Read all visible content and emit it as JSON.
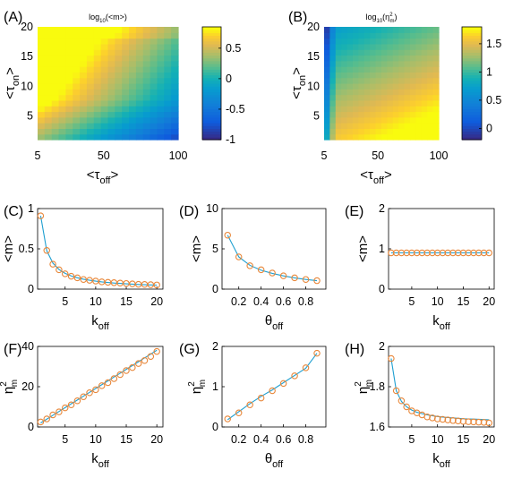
{
  "chart_data": [
    {
      "panel": "(A)",
      "type": "heatmap",
      "title": "log10(<m>)",
      "title_parts": {
        "pre": "log",
        "sub": "10",
        "post": "(<m>)"
      },
      "xlabel": {
        "main": "<τ",
        "sub": "off",
        "post": ">"
      },
      "ylabel": {
        "main": "<τ",
        "sub": "on",
        "post": ">"
      },
      "xlim": [
        5,
        100
      ],
      "ylim": [
        1,
        20
      ],
      "xticks": [
        "5",
        "50",
        "100"
      ],
      "yticks": [
        "5",
        "10",
        "15",
        "20"
      ],
      "colorbar": {
        "ticks": [
          "-1",
          "-0.5",
          "0",
          "0.5"
        ],
        "range": [
          -1,
          0.85
        ],
        "colormap": "parula"
      }
    },
    {
      "panel": "(B)",
      "type": "heatmap",
      "title": "log10(η²m)",
      "title_parts": {
        "pre": "log",
        "sub": "10",
        "post": "(η",
        "sup2": "2",
        "sub2": "m",
        "end": ")"
      },
      "xlabel": {
        "main": "<τ",
        "sub": "off",
        "post": ">"
      },
      "ylabel": {
        "main": "<τ",
        "sub": "on",
        "post": ">"
      },
      "xlim": [
        5,
        100
      ],
      "ylim": [
        1,
        20
      ],
      "xticks": [
        "5",
        "50",
        "100"
      ],
      "yticks": [
        "5",
        "10",
        "15",
        "20"
      ],
      "colorbar": {
        "ticks": [
          "0",
          "0.5",
          "1",
          "1.5"
        ],
        "range": [
          -0.2,
          1.8
        ],
        "colormap": "parula"
      }
    },
    {
      "panel": "(C)",
      "type": "line",
      "xlabel": {
        "main": "k",
        "sub": "off"
      },
      "ylabel": {
        "main": "<m>"
      },
      "xlim": [
        0.5,
        21
      ],
      "ylim": [
        0,
        1
      ],
      "xticks": [
        5,
        10,
        15,
        20
      ],
      "yticks": [
        0,
        0.5,
        1
      ],
      "x": [
        1,
        2,
        3,
        4,
        5,
        6,
        7,
        8,
        9,
        10,
        11,
        12,
        13,
        14,
        15,
        16,
        17,
        18,
        19,
        20
      ],
      "sim": [
        0.91,
        0.48,
        0.31,
        0.24,
        0.19,
        0.16,
        0.14,
        0.12,
        0.11,
        0.1,
        0.09,
        0.085,
        0.08,
        0.075,
        0.07,
        0.065,
        0.06,
        0.058,
        0.055,
        0.052
      ],
      "theory": [
        0.91,
        0.476,
        0.323,
        0.244,
        0.196,
        0.164,
        0.141,
        0.123,
        0.11,
        0.099,
        0.09,
        0.083,
        0.076,
        0.071,
        0.066,
        0.062,
        0.058,
        0.055,
        0.052,
        0.05
      ]
    },
    {
      "panel": "(D)",
      "type": "line",
      "xlabel": {
        "main": "θ",
        "sub": "off"
      },
      "ylabel": {
        "main": "<m>"
      },
      "xlim": [
        0.05,
        0.98
      ],
      "ylim": [
        0,
        10
      ],
      "xticks": [
        0.2,
        0.4,
        0.6,
        0.8
      ],
      "yticks": [
        0,
        5,
        10
      ],
      "x": [
        0.1,
        0.2,
        0.3,
        0.4,
        0.5,
        0.6,
        0.7,
        0.8,
        0.9
      ],
      "sim": [
        6.7,
        4.0,
        2.9,
        2.4,
        2.0,
        1.65,
        1.4,
        1.2,
        1.05
      ],
      "theory": [
        6.7,
        4.0,
        2.95,
        2.35,
        1.95,
        1.65,
        1.4,
        1.2,
        1.05
      ]
    },
    {
      "panel": "(E)",
      "type": "line",
      "xlabel": {
        "main": "k",
        "sub": "off"
      },
      "ylabel": {
        "main": "<m>"
      },
      "xlim": [
        0.5,
        21
      ],
      "ylim": [
        0,
        2
      ],
      "xticks": [
        5,
        10,
        15,
        20
      ],
      "yticks": [
        0,
        1,
        2
      ],
      "x": [
        1,
        2,
        3,
        4,
        5,
        6,
        7,
        8,
        9,
        10,
        11,
        12,
        13,
        14,
        15,
        16,
        17,
        18,
        19,
        20
      ],
      "sim": [
        0.9,
        0.9,
        0.9,
        0.9,
        0.9,
        0.9,
        0.9,
        0.9,
        0.9,
        0.9,
        0.9,
        0.9,
        0.9,
        0.9,
        0.9,
        0.9,
        0.9,
        0.9,
        0.9,
        0.9
      ],
      "theory": [
        0.9,
        0.9,
        0.9,
        0.9,
        0.9,
        0.9,
        0.9,
        0.9,
        0.9,
        0.9,
        0.9,
        0.9,
        0.9,
        0.9,
        0.9,
        0.9,
        0.9,
        0.9,
        0.9,
        0.9
      ]
    },
    {
      "panel": "(F)",
      "type": "line",
      "xlabel": {
        "main": "k",
        "sub": "off"
      },
      "ylabel": {
        "main": "η",
        "sup": "2",
        "sub": "m"
      },
      "xlim": [
        0.5,
        21
      ],
      "ylim": [
        0,
        40
      ],
      "xticks": [
        5,
        10,
        15,
        20
      ],
      "yticks": [
        0,
        20,
        40
      ],
      "x": [
        1,
        2,
        3,
        4,
        5,
        6,
        7,
        8,
        9,
        10,
        11,
        12,
        13,
        14,
        15,
        16,
        17,
        18,
        19,
        20
      ],
      "sim": [
        2.5,
        4.0,
        6.0,
        7.5,
        9.5,
        11.0,
        13.0,
        15.0,
        17.0,
        18.5,
        20.5,
        22.0,
        24.0,
        26.0,
        28.0,
        29.5,
        31.5,
        33.0,
        35.0,
        37.5
      ],
      "theory": [
        2.0,
        3.9,
        5.8,
        7.7,
        9.6,
        11.5,
        13.4,
        15.3,
        17.2,
        19.1,
        21.0,
        22.9,
        24.8,
        26.7,
        28.6,
        30.5,
        32.4,
        34.3,
        36.2,
        38.1
      ]
    },
    {
      "panel": "(G)",
      "type": "line",
      "xlabel": {
        "main": "θ",
        "sub": "off"
      },
      "ylabel": {
        "main": "η",
        "sup": "2",
        "sub": "m"
      },
      "xlim": [
        0.05,
        0.98
      ],
      "ylim": [
        0,
        2
      ],
      "xticks": [
        0.2,
        0.4,
        0.6,
        0.8
      ],
      "yticks": [
        0,
        1,
        2
      ],
      "x": [
        0.1,
        0.2,
        0.3,
        0.4,
        0.5,
        0.6,
        0.7,
        0.8,
        0.9
      ],
      "sim": [
        0.2,
        0.35,
        0.55,
        0.72,
        0.9,
        1.08,
        1.27,
        1.47,
        1.83
      ],
      "theory": [
        0.18,
        0.38,
        0.58,
        0.76,
        0.92,
        1.1,
        1.28,
        1.46,
        1.83
      ]
    },
    {
      "panel": "(H)",
      "type": "line",
      "xlabel": {
        "main": "k",
        "sub": "off"
      },
      "ylabel": {
        "main": "η",
        "sup": "2",
        "sub": "m"
      },
      "xlim": [
        0.5,
        21
      ],
      "ylim": [
        1.6,
        2
      ],
      "xticks": [
        5,
        10,
        15,
        20
      ],
      "yticks": [
        1.6,
        1.8,
        2
      ],
      "x": [
        1,
        2,
        3,
        4,
        5,
        6,
        7,
        8,
        9,
        10,
        11,
        12,
        13,
        14,
        15,
        16,
        17,
        18,
        19,
        20
      ],
      "sim": [
        1.94,
        1.78,
        1.73,
        1.7,
        1.68,
        1.67,
        1.66,
        1.65,
        1.645,
        1.64,
        1.638,
        1.635,
        1.632,
        1.63,
        1.628,
        1.626,
        1.625,
        1.624,
        1.623,
        1.62
      ],
      "theory": [
        1.94,
        1.78,
        1.727,
        1.7,
        1.684,
        1.673,
        1.666,
        1.66,
        1.656,
        1.652,
        1.649,
        1.647,
        1.645,
        1.643,
        1.641,
        1.64,
        1.639,
        1.638,
        1.637,
        1.636
      ]
    }
  ],
  "colors": {
    "line": "#1f9fd0",
    "marker": "#e8873a",
    "axis": "#000000"
  }
}
